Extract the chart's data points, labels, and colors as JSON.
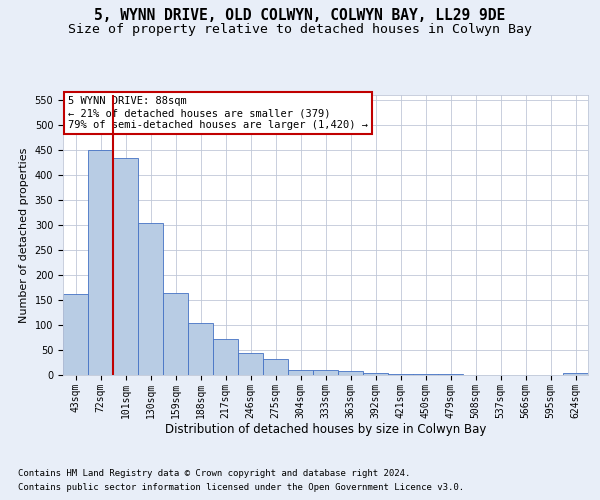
{
  "title": "5, WYNN DRIVE, OLD COLWYN, COLWYN BAY, LL29 9DE",
  "subtitle": "Size of property relative to detached houses in Colwyn Bay",
  "xlabel": "Distribution of detached houses by size in Colwyn Bay",
  "ylabel": "Number of detached properties",
  "categories": [
    "43sqm",
    "72sqm",
    "101sqm",
    "130sqm",
    "159sqm",
    "188sqm",
    "217sqm",
    "246sqm",
    "275sqm",
    "304sqm",
    "333sqm",
    "363sqm",
    "392sqm",
    "421sqm",
    "450sqm",
    "479sqm",
    "508sqm",
    "537sqm",
    "566sqm",
    "595sqm",
    "624sqm"
  ],
  "values": [
    163,
    450,
    435,
    305,
    165,
    105,
    73,
    44,
    33,
    10,
    10,
    8,
    5,
    3,
    2,
    2,
    1,
    1,
    1,
    1,
    4
  ],
  "bar_color": "#b8cce4",
  "bar_edge_color": "#4472c4",
  "vline_x_index": 1,
  "vline_color": "#c00000",
  "annotation_text": "5 WYNN DRIVE: 88sqm\n← 21% of detached houses are smaller (379)\n79% of semi-detached houses are larger (1,420) →",
  "annotation_box_color": "#ffffff",
  "annotation_box_edge": "#c00000",
  "ylim": [
    0,
    560
  ],
  "yticks": [
    0,
    50,
    100,
    150,
    200,
    250,
    300,
    350,
    400,
    450,
    500,
    550
  ],
  "footer1": "Contains HM Land Registry data © Crown copyright and database right 2024.",
  "footer2": "Contains public sector information licensed under the Open Government Licence v3.0.",
  "background_color": "#e8eef8",
  "plot_bg_color": "#ffffff",
  "grid_color": "#c0c8d8",
  "title_fontsize": 10.5,
  "subtitle_fontsize": 9.5,
  "xlabel_fontsize": 8.5,
  "ylabel_fontsize": 8,
  "tick_fontsize": 7,
  "footer_fontsize": 6.5
}
